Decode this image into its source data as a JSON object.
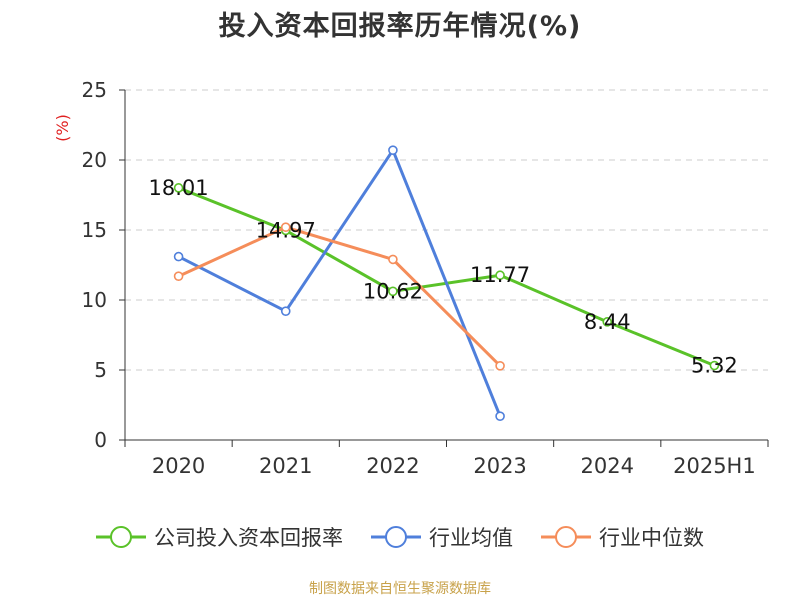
{
  "chart_data": {
    "type": "line",
    "title": "投入资本回报率历年情况(%)",
    "ylabel": "(%)",
    "xlabel": "",
    "categories": [
      "2020",
      "2021",
      "2022",
      "2023",
      "2024",
      "2025H1"
    ],
    "ylim": [
      0,
      25
    ],
    "yticks": [
      0,
      5,
      10,
      15,
      20,
      25
    ],
    "grid": true,
    "legend_position": "bottom",
    "series": [
      {
        "name": "公司投入资本回报率",
        "color": "#5ac229",
        "values": [
          18.01,
          14.97,
          10.62,
          11.77,
          8.44,
          5.32
        ],
        "labels": [
          "18.01",
          "14.97",
          "10.62",
          "11.77",
          "8.44",
          "5.32"
        ]
      },
      {
        "name": "行业均值",
        "color": "#4f7fdb",
        "values": [
          13.1,
          9.2,
          20.7,
          1.7,
          null,
          null
        ]
      },
      {
        "name": "行业中位数",
        "color": "#f58d5a",
        "values": [
          11.7,
          15.2,
          12.9,
          5.3,
          null,
          null
        ]
      }
    ]
  },
  "footer": {
    "source": "制图数据来自恒生聚源数据库"
  }
}
